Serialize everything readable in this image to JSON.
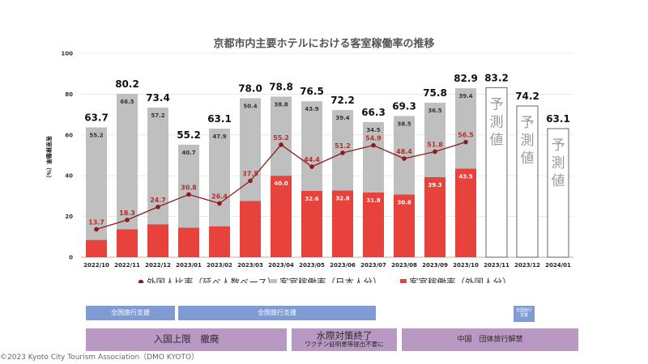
{
  "chart_data": {
    "type": "bar",
    "title": "京都市内主要ホテルにおける客室稼働率の推移",
    "ylabel": "客室稼働率（%）",
    "ylim": [
      0,
      100
    ],
    "yticks": [
      "0",
      "20",
      "40",
      "60",
      "80",
      "100"
    ],
    "categories": [
      "2022/10",
      "2022/11",
      "2022/12",
      "2023/01",
      "2023/02",
      "2023/03",
      "2023/04",
      "2023/05",
      "2023/06",
      "2023/07",
      "2023/08",
      "2023/09",
      "2023/10",
      "2023/11",
      "2023/12",
      "2024/01"
    ],
    "series": [
      {
        "name": "客室稼働率（外国人分）",
        "type": "bar",
        "color": "#e8423c",
        "values": [
          8.5,
          13.7,
          16.2,
          14.5,
          15.2,
          27.6,
          40.0,
          32.6,
          32.8,
          31.8,
          30.8,
          39.3,
          43.5,
          null,
          null,
          null
        ],
        "labels": [
          "",
          "",
          "",
          "",
          "",
          "",
          "40.0",
          "32.6",
          "32.8",
          "31.8",
          "30.8",
          "39.3",
          "43.5",
          "",
          "",
          ""
        ]
      },
      {
        "name": "客室稼働率（日本人分）",
        "type": "bar",
        "color": "#bfbfbf",
        "values": [
          55.2,
          66.5,
          57.2,
          40.7,
          47.9,
          50.4,
          38.8,
          43.9,
          39.4,
          34.5,
          38.5,
          36.5,
          39.4,
          null,
          null,
          null
        ],
        "labels": [
          "55.2",
          "66.5",
          "57.2",
          "40.7",
          "47.9",
          "50.4",
          "38.8",
          "43.9",
          "39.4",
          "34.5",
          "38.5",
          "36.5",
          "39.4",
          "",
          "",
          ""
        ]
      },
      {
        "name": "外国人比率（延べ人数ベース）",
        "type": "line",
        "color": "#8b1c1c",
        "values": [
          13.7,
          18.3,
          24.7,
          30.8,
          26.4,
          37.5,
          55.2,
          44.4,
          51.2,
          54.9,
          48.4,
          51.8,
          56.5,
          null,
          null,
          null
        ],
        "labels": [
          "13.7",
          "18.3",
          "24.7",
          "30.8",
          "26.4",
          "37.5",
          "55.2",
          "44.4",
          "51.2",
          "54.9",
          "48.4",
          "51.8",
          "56.5",
          "",
          "",
          ""
        ]
      }
    ],
    "totals": [
      63.7,
      80.2,
      73.4,
      55.2,
      63.1,
      78.0,
      78.8,
      76.5,
      72.2,
      66.3,
      69.3,
      75.8,
      82.9,
      83.2,
      74.2,
      63.1
    ],
    "totals_labels": [
      "63.7",
      "80.2",
      "73.4",
      "55.2",
      "63.1",
      "78.0",
      "78.8",
      "76.5",
      "72.2",
      "66.3",
      "69.3",
      "75.8",
      "82.9",
      "83.2",
      "74.2",
      "63.1"
    ],
    "forecast_label": "予測値",
    "grid": true,
    "legend": "bottom"
  },
  "legend": {
    "ratio": "外国人比率（延べ人数ベース）",
    "japanese": "客室稼働率（日本人分）",
    "foreign": "客室稼働率（外国人分）"
  },
  "colors": {
    "foreign": "#e8423c",
    "japanese": "#bfbfbf",
    "ratio": "#8b1c1c",
    "blue_band": "#7f9bd4",
    "purple_band": "#b998c4"
  },
  "timeline": {
    "blue": [
      {
        "label": "全国旅行支援"
      },
      {
        "label": "全国旅行支援"
      },
      {
        "label": "全国旅行支援"
      }
    ],
    "purple": [
      {
        "label": "入国上限　撤廃",
        "sub": ""
      },
      {
        "label": "水際対策終了",
        "sub": "ワクチン証明書等提出不要に"
      },
      {
        "label": "中国　団体旅行解禁",
        "sub": ""
      }
    ]
  },
  "copyright": "©2023 Kyoto City Tourism Association（DMO KYOTO）"
}
